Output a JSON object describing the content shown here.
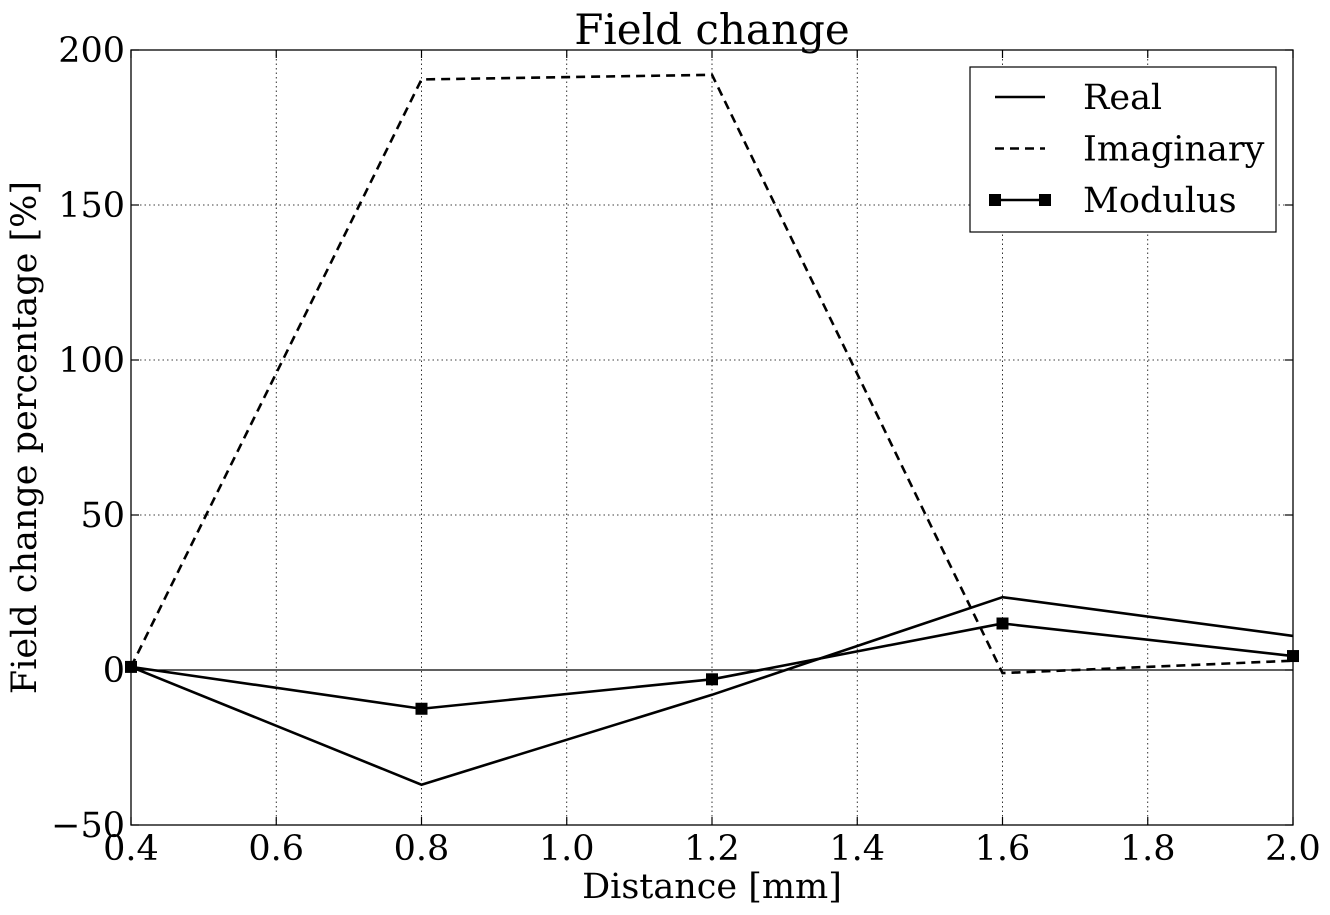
{
  "chart_data": {
    "type": "line",
    "title": "Field change",
    "xlabel": "Distance [mm]",
    "ylabel": "Field change percentage [%]",
    "xlim": [
      0.4,
      2.0
    ],
    "ylim": [
      -50,
      200
    ],
    "xticks": [
      0.4,
      0.6,
      0.8,
      1.0,
      1.2,
      1.4,
      1.6,
      1.8,
      2.0
    ],
    "xtick_labels": [
      "0.4",
      "0.6",
      "0.8",
      "1.0",
      "1.2",
      "1.4",
      "1.6",
      "1.8",
      "2.0"
    ],
    "yticks": [
      -50,
      0,
      50,
      100,
      150,
      200
    ],
    "ytick_labels": [
      "−50",
      "0",
      "50",
      "100",
      "150",
      "200"
    ],
    "grid": true,
    "zero_line": true,
    "legend_position": "top-right",
    "x": [
      0.4,
      0.8,
      1.2,
      1.6,
      2.0
    ],
    "series": [
      {
        "name": "Real",
        "style": "solid",
        "marker": "none",
        "color": "#000000",
        "values": [
          1,
          -37,
          -8,
          23.5,
          11
        ]
      },
      {
        "name": "Imaginary",
        "style": "dashed",
        "marker": "none",
        "color": "#000000",
        "values": [
          1,
          190.5,
          192,
          -1,
          3
        ]
      },
      {
        "name": "Modulus",
        "style": "solid",
        "marker": "square",
        "color": "#000000",
        "values": [
          1,
          -12.5,
          -3,
          15,
          4.5
        ]
      }
    ]
  }
}
